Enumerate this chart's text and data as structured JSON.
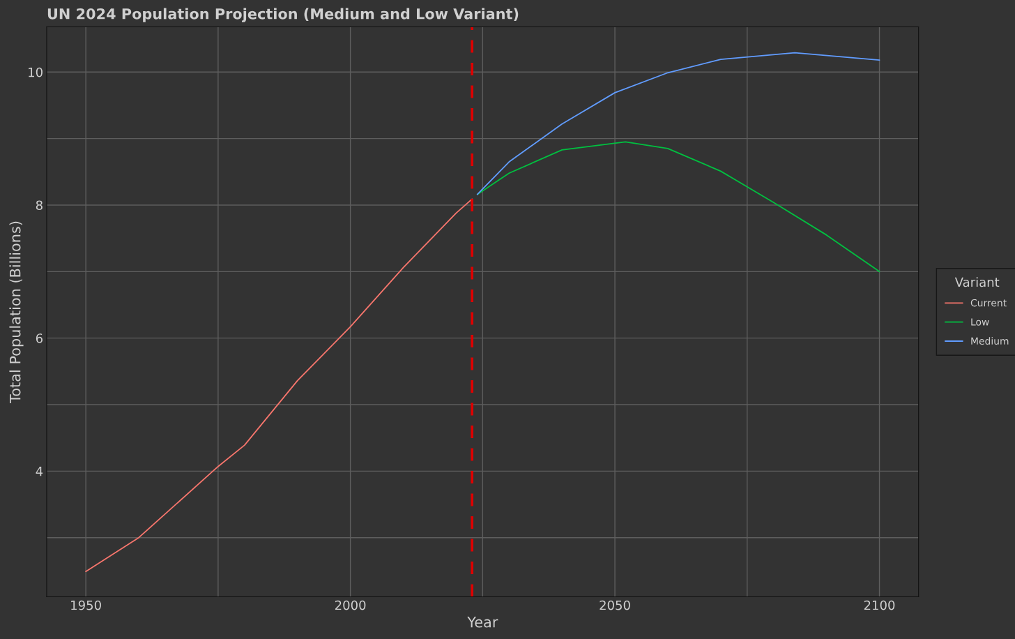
{
  "chart_data": {
    "type": "line",
    "title": "UN 2024 Population Projection (Medium and Low Variant)",
    "xlabel": "Year",
    "ylabel": "Total Population (Billions)",
    "legend_title": "Variant",
    "legend": "right",
    "grid": true,
    "xlim": [
      1942.6,
      2107.4
    ],
    "ylim": [
      2.11,
      10.68
    ],
    "xticks": [
      1950,
      {
        "value": 1975,
        "label": null
      },
      2000,
      {
        "value": 2025,
        "label": null
      },
      2050,
      {
        "value": 2075,
        "label": null
      },
      2100
    ],
    "yticks": [
      {
        "value": 3,
        "label": null
      },
      4,
      {
        "value": 5,
        "label": null
      },
      6,
      {
        "value": 7,
        "label": null
      },
      8,
      {
        "value": 9,
        "label": null
      },
      10
    ],
    "series": [
      {
        "name": "Current",
        "color": "#f8766d",
        "x": [
          1950,
          1960,
          1975,
          1980,
          1990,
          2000,
          2010,
          2020,
          2023
        ],
        "values": [
          2.49,
          3.0,
          4.07,
          4.39,
          5.36,
          6.17,
          7.06,
          7.88,
          8.09
        ]
      },
      {
        "name": "Low",
        "color": "#00c040",
        "x": [
          2024,
          2030,
          2040,
          2052,
          2060,
          2070,
          2080,
          2090,
          2100
        ],
        "values": [
          8.16,
          8.48,
          8.83,
          8.95,
          8.85,
          8.51,
          8.04,
          7.55,
          7.0
        ]
      },
      {
        "name": "Medium",
        "color": "#619cff",
        "x": [
          2024,
          2030,
          2040,
          2050,
          2060,
          2070,
          2084,
          2100
        ],
        "values": [
          8.16,
          8.65,
          9.22,
          9.69,
          9.99,
          10.19,
          10.29,
          10.18
        ]
      }
    ],
    "ref_lines": [
      {
        "axis": "x",
        "value": 2023,
        "color": "#e00000",
        "line_style": "dashed"
      }
    ]
  }
}
